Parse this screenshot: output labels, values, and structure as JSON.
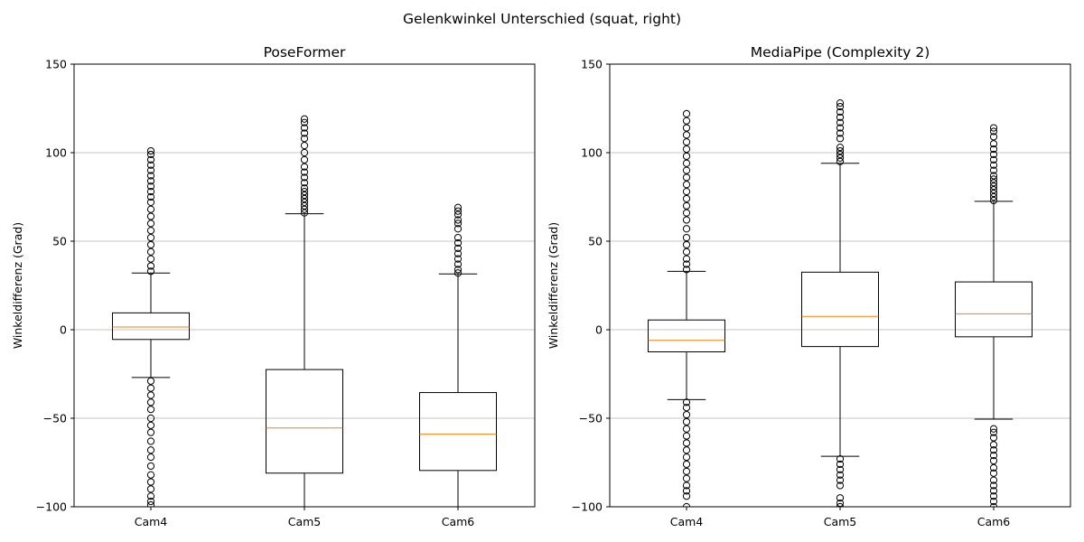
{
  "figure": {
    "title": "Gelenkwinkel Unterschied (squat, right)"
  },
  "chart_data": [
    {
      "type": "box",
      "title": "PoseFormer",
      "ylabel": "Winkeldifferenz (Grad)",
      "ylim": [
        -100,
        150
      ],
      "yticks": [
        -100,
        -50,
        0,
        50,
        100,
        150
      ],
      "ytick_labels": [
        "−100",
        "−50",
        "0",
        "50",
        "100",
        "150"
      ],
      "grid": "y",
      "categories": [
        "Cam4",
        "Cam5",
        "Cam6"
      ],
      "boxes": [
        {
          "whisker_low": -27,
          "q1": -5.5,
          "median": 1.5,
          "q3": 9.5,
          "whisker_high": 32,
          "outliers_high": [
            33,
            36,
            40,
            44,
            48,
            52,
            56,
            60,
            64,
            68,
            72,
            75,
            78,
            81,
            84,
            87,
            90,
            93,
            96,
            99,
            101
          ],
          "outliers_low": [
            -29,
            -33,
            -37,
            -41,
            -45,
            -50,
            -54,
            -58,
            -63,
            -68,
            -72,
            -77,
            -82,
            -86,
            -90,
            -94,
            -97,
            -99
          ]
        },
        {
          "whisker_low": -100,
          "q1": -81,
          "median": -55.5,
          "q3": -22.5,
          "whisker_high": 65.5,
          "outliers_high": [
            66,
            68,
            70,
            72,
            74,
            76,
            78,
            80,
            83,
            86,
            89,
            92,
            96,
            100,
            104,
            108,
            111,
            114,
            117,
            119
          ],
          "outliers_low": []
        },
        {
          "whisker_low": -100,
          "q1": -79.5,
          "median": -59,
          "q3": -35.5,
          "whisker_high": 31.5,
          "outliers_high": [
            32,
            34,
            37,
            40,
            43,
            46,
            49,
            52,
            57,
            60,
            62,
            65,
            67,
            69
          ],
          "outliers_low": []
        }
      ]
    },
    {
      "type": "box",
      "title": "MediaPipe (Complexity 2)",
      "ylabel": "Winkeldifferenz (Grad)",
      "ylim": [
        -100,
        150
      ],
      "yticks": [
        -100,
        -50,
        0,
        50,
        100,
        150
      ],
      "ytick_labels": [
        "−100",
        "−50",
        "0",
        "50",
        "100",
        "150"
      ],
      "grid": "y",
      "categories": [
        "Cam4",
        "Cam5",
        "Cam6"
      ],
      "boxes": [
        {
          "whisker_low": -39.5,
          "q1": -12.5,
          "median": -6,
          "q3": 5.5,
          "whisker_high": 33,
          "outliers_high": [
            34,
            37,
            40,
            44,
            48,
            52,
            57,
            62,
            66,
            70,
            74,
            78,
            82,
            86,
            90,
            94,
            98,
            102,
            106,
            110,
            114,
            118,
            122
          ],
          "outliers_low": [
            -41,
            -44,
            -48,
            -52,
            -56,
            -60,
            -64,
            -68,
            -72,
            -76,
            -80,
            -84,
            -88,
            -91,
            -94,
            -100
          ]
        },
        {
          "whisker_low": -71.5,
          "q1": -9.5,
          "median": 7.5,
          "q3": 32.5,
          "whisker_high": 94,
          "outliers_high": [
            95,
            97,
            99,
            101,
            103,
            108,
            111,
            114,
            117,
            120,
            123,
            126,
            128
          ],
          "outliers_low": [
            -73,
            -76,
            -79,
            -82,
            -85,
            -88,
            -95,
            -98,
            -100
          ]
        },
        {
          "whisker_low": -50.5,
          "q1": -4,
          "median": 9,
          "q3": 27,
          "whisker_high": 72.5,
          "outliers_high": [
            73,
            75,
            77,
            79,
            81,
            83,
            85,
            87,
            90,
            93,
            96,
            99,
            102,
            105,
            109,
            112,
            114
          ],
          "outliers_low": [
            -56,
            -58,
            -61,
            -65,
            -68,
            -71,
            -74,
            -78,
            -81,
            -85,
            -88,
            -91,
            -94,
            -97,
            -100
          ]
        }
      ]
    }
  ]
}
